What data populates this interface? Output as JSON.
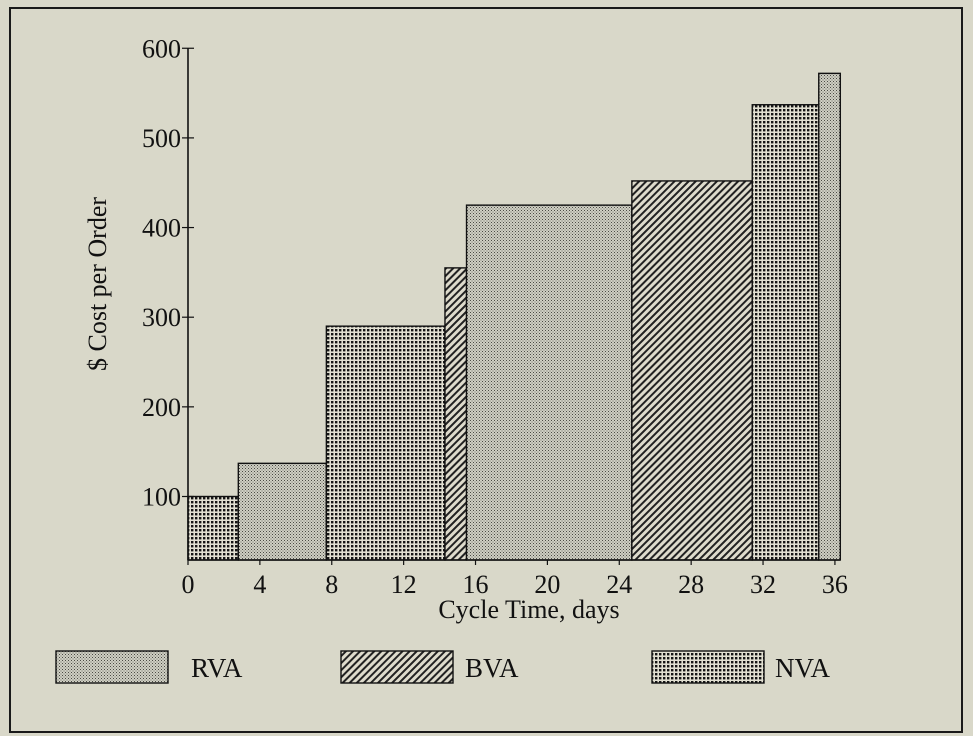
{
  "chart_data": {
    "type": "bar",
    "title": "",
    "xlabel": "Cycle Time, days",
    "ylabel": "$ Cost per Order",
    "xlim": [
      0,
      36
    ],
    "ylim": [
      30,
      600
    ],
    "x_ticks": [
      0,
      4,
      8,
      12,
      16,
      20,
      24,
      28,
      32,
      36
    ],
    "y_ticks": [
      100,
      200,
      300,
      400,
      500,
      600
    ],
    "grid": false,
    "legend_position": "bottom",
    "legend": [
      {
        "key": "RVA",
        "label": "RVA"
      },
      {
        "key": "BVA",
        "label": "BVA"
      },
      {
        "key": "NVA",
        "label": "NVA"
      }
    ],
    "bars": [
      {
        "x_start": 0,
        "x_end": 2.8,
        "value": 100,
        "category": "NVA"
      },
      {
        "x_start": 2.8,
        "x_end": 7.7,
        "value": 137,
        "category": "RVA"
      },
      {
        "x_start": 7.7,
        "x_end": 14.3,
        "value": 290,
        "category": "NVA"
      },
      {
        "x_start": 14.3,
        "x_end": 15.5,
        "value": 355,
        "category": "BVA"
      },
      {
        "x_start": 15.5,
        "x_end": 24.7,
        "value": 425,
        "category": "RVA"
      },
      {
        "x_start": 24.7,
        "x_end": 31.4,
        "value": 452,
        "category": "BVA"
      },
      {
        "x_start": 31.4,
        "x_end": 35.1,
        "value": 537,
        "category": "NVA"
      },
      {
        "x_start": 35.1,
        "x_end": 36.3,
        "value": 572,
        "category": "RVA"
      }
    ]
  }
}
